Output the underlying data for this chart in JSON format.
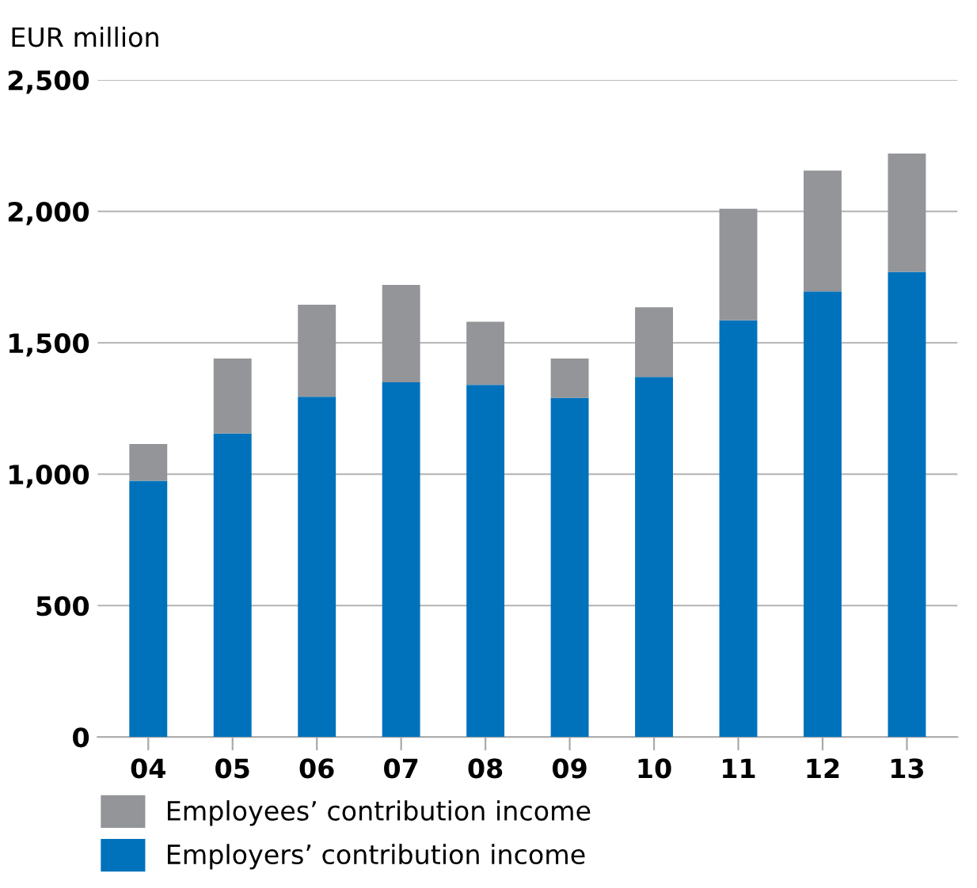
{
  "chart_data": {
    "type": "bar",
    "stacked": true,
    "ylabel": "EUR million",
    "categories": [
      "04",
      "05",
      "06",
      "07",
      "08",
      "09",
      "10",
      "11",
      "12",
      "13"
    ],
    "series": [
      {
        "name": "Employers’ contribution income",
        "color": "#0072bc",
        "values": [
          975,
          1155,
          1295,
          1350,
          1340,
          1290,
          1370,
          1585,
          1695,
          1770
        ]
      },
      {
        "name": "Employees’ contribution income",
        "color": "#939598",
        "values": [
          140,
          285,
          350,
          370,
          240,
          150,
          265,
          425,
          460,
          450
        ]
      }
    ],
    "ylim": [
      0,
      2500
    ],
    "yticks": [
      0,
      {
        "value": 500,
        "label": "500"
      },
      {
        "value": 1000,
        "label": "1,000"
      },
      {
        "value": 1500,
        "label": "1,500"
      },
      {
        "value": 2000,
        "label": "2,000"
      },
      {
        "value": 2500,
        "label": "2,500"
      }
    ],
    "grid": "y",
    "legend": "bottom"
  }
}
